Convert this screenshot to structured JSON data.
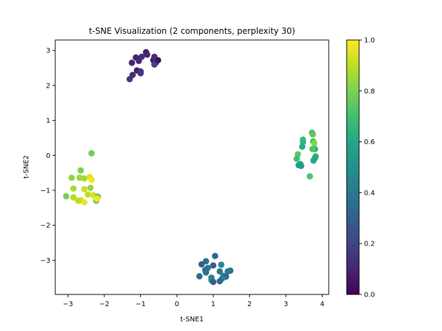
{
  "chart_data": {
    "type": "scatter",
    "title": "t-SNE Visualization (2 components, perplexity 30)",
    "xlabel": "t-SNE1",
    "ylabel": "t-SNE2",
    "xlim": [
      -3.35,
      4.18
    ],
    "ylim": [
      -3.98,
      3.3
    ],
    "xticks": [
      -3,
      -2,
      -1,
      0,
      1,
      2,
      3,
      4
    ],
    "yticks": [
      -3,
      -2,
      -1,
      0,
      1,
      2,
      3
    ],
    "grid": false,
    "colormap": "viridis",
    "colorbar": {
      "range": [
        0.0,
        1.0
      ],
      "ticks": [
        0.0,
        0.2,
        0.4,
        0.6,
        0.8,
        1.0
      ]
    },
    "points": [
      {
        "x": -1.3,
        "y": 2.18,
        "c": 0.15
      },
      {
        "x": -1.22,
        "y": 2.3,
        "c": 0.12
      },
      {
        "x": -1.24,
        "y": 2.65,
        "c": 0.1
      },
      {
        "x": -1.13,
        "y": 2.8,
        "c": 0.09
      },
      {
        "x": -1.1,
        "y": 2.43,
        "c": 0.08
      },
      {
        "x": -1.05,
        "y": 2.7,
        "c": 0.11
      },
      {
        "x": -1.0,
        "y": 2.35,
        "c": 0.14
      },
      {
        "x": -0.97,
        "y": 2.82,
        "c": 0.12
      },
      {
        "x": -1.0,
        "y": 2.4,
        "c": 0.16
      },
      {
        "x": -0.85,
        "y": 2.95,
        "c": 0.07
      },
      {
        "x": -0.82,
        "y": 2.88,
        "c": 0.1
      },
      {
        "x": -0.65,
        "y": 2.72,
        "c": 0.05
      },
      {
        "x": -0.62,
        "y": 2.6,
        "c": 0.18
      },
      {
        "x": -0.62,
        "y": 2.82,
        "c": 0.13
      },
      {
        "x": -0.58,
        "y": 2.65,
        "c": 0.22
      },
      {
        "x": -0.52,
        "y": 2.72,
        "c": 0.04
      },
      {
        "x": 1.05,
        "y": -2.88,
        "c": 0.33
      },
      {
        "x": 0.8,
        "y": -3.03,
        "c": 0.36
      },
      {
        "x": 0.68,
        "y": -3.12,
        "c": 0.3
      },
      {
        "x": 1.0,
        "y": -3.15,
        "c": 0.31
      },
      {
        "x": 1.22,
        "y": -3.13,
        "c": 0.45
      },
      {
        "x": 0.85,
        "y": -3.22,
        "c": 0.42
      },
      {
        "x": 0.78,
        "y": -3.28,
        "c": 0.34
      },
      {
        "x": 0.8,
        "y": -3.35,
        "c": 0.37
      },
      {
        "x": 1.18,
        "y": -3.32,
        "c": 0.4
      },
      {
        "x": 1.47,
        "y": -3.3,
        "c": 0.38
      },
      {
        "x": 1.4,
        "y": -3.32,
        "c": 0.41
      },
      {
        "x": 0.62,
        "y": -3.46,
        "c": 0.35
      },
      {
        "x": 1.28,
        "y": -3.45,
        "c": 0.39
      },
      {
        "x": 1.35,
        "y": -3.47,
        "c": 0.32
      },
      {
        "x": 1.25,
        "y": -3.52,
        "c": 0.44
      },
      {
        "x": 0.95,
        "y": -3.5,
        "c": 0.43
      },
      {
        "x": 0.95,
        "y": -3.57,
        "c": 0.47
      },
      {
        "x": 1.0,
        "y": -3.62,
        "c": 0.29
      },
      {
        "x": 1.18,
        "y": -3.6,
        "c": 0.33
      },
      {
        "x": 3.72,
        "y": 0.65,
        "c": 0.71
      },
      {
        "x": 3.74,
        "y": 0.6,
        "c": 0.74
      },
      {
        "x": 3.47,
        "y": 0.45,
        "c": 0.68
      },
      {
        "x": 3.47,
        "y": 0.38,
        "c": 0.65
      },
      {
        "x": 3.75,
        "y": 0.4,
        "c": 0.7
      },
      {
        "x": 3.78,
        "y": 0.35,
        "c": 0.82
      },
      {
        "x": 3.45,
        "y": 0.25,
        "c": 0.62
      },
      {
        "x": 3.8,
        "y": 0.18,
        "c": 0.64
      },
      {
        "x": 3.73,
        "y": 0.18,
        "c": 0.73
      },
      {
        "x": 3.33,
        "y": 0.03,
        "c": 0.75
      },
      {
        "x": 3.82,
        "y": -0.03,
        "c": 0.66
      },
      {
        "x": 3.3,
        "y": -0.1,
        "c": 0.69
      },
      {
        "x": 3.8,
        "y": -0.08,
        "c": 0.61
      },
      {
        "x": 3.76,
        "y": -0.15,
        "c": 0.6
      },
      {
        "x": 3.4,
        "y": -0.25,
        "c": 0.58
      },
      {
        "x": 3.35,
        "y": -0.28,
        "c": 0.56
      },
      {
        "x": 3.42,
        "y": -0.3,
        "c": 0.55
      },
      {
        "x": 3.66,
        "y": -0.6,
        "c": 0.72
      },
      {
        "x": -2.35,
        "y": 0.06,
        "c": 0.78
      },
      {
        "x": -2.65,
        "y": -0.43,
        "c": 0.8
      },
      {
        "x": -2.9,
        "y": -0.64,
        "c": 0.83
      },
      {
        "x": -2.68,
        "y": -0.64,
        "c": 0.85
      },
      {
        "x": -2.55,
        "y": -0.66,
        "c": 0.86
      },
      {
        "x": -2.4,
        "y": -0.62,
        "c": 0.95
      },
      {
        "x": -2.35,
        "y": -0.7,
        "c": 0.98
      },
      {
        "x": -2.85,
        "y": -0.95,
        "c": 0.87
      },
      {
        "x": -2.38,
        "y": -0.93,
        "c": 0.84
      },
      {
        "x": -2.55,
        "y": -0.97,
        "c": 0.92
      },
      {
        "x": -3.05,
        "y": -1.17,
        "c": 0.79
      },
      {
        "x": -2.85,
        "y": -1.2,
        "c": 0.88
      },
      {
        "x": -2.45,
        "y": -1.12,
        "c": 0.9
      },
      {
        "x": -2.3,
        "y": -1.14,
        "c": 0.93
      },
      {
        "x": -2.18,
        "y": -1.18,
        "c": 0.76
      },
      {
        "x": -2.65,
        "y": -1.28,
        "c": 0.94
      },
      {
        "x": -2.22,
        "y": -1.3,
        "c": 0.77
      },
      {
        "x": -2.2,
        "y": -1.24,
        "c": 0.99
      },
      {
        "x": -2.72,
        "y": -1.3,
        "c": 0.89
      },
      {
        "x": -2.55,
        "y": -1.34,
        "c": 0.97
      }
    ]
  }
}
